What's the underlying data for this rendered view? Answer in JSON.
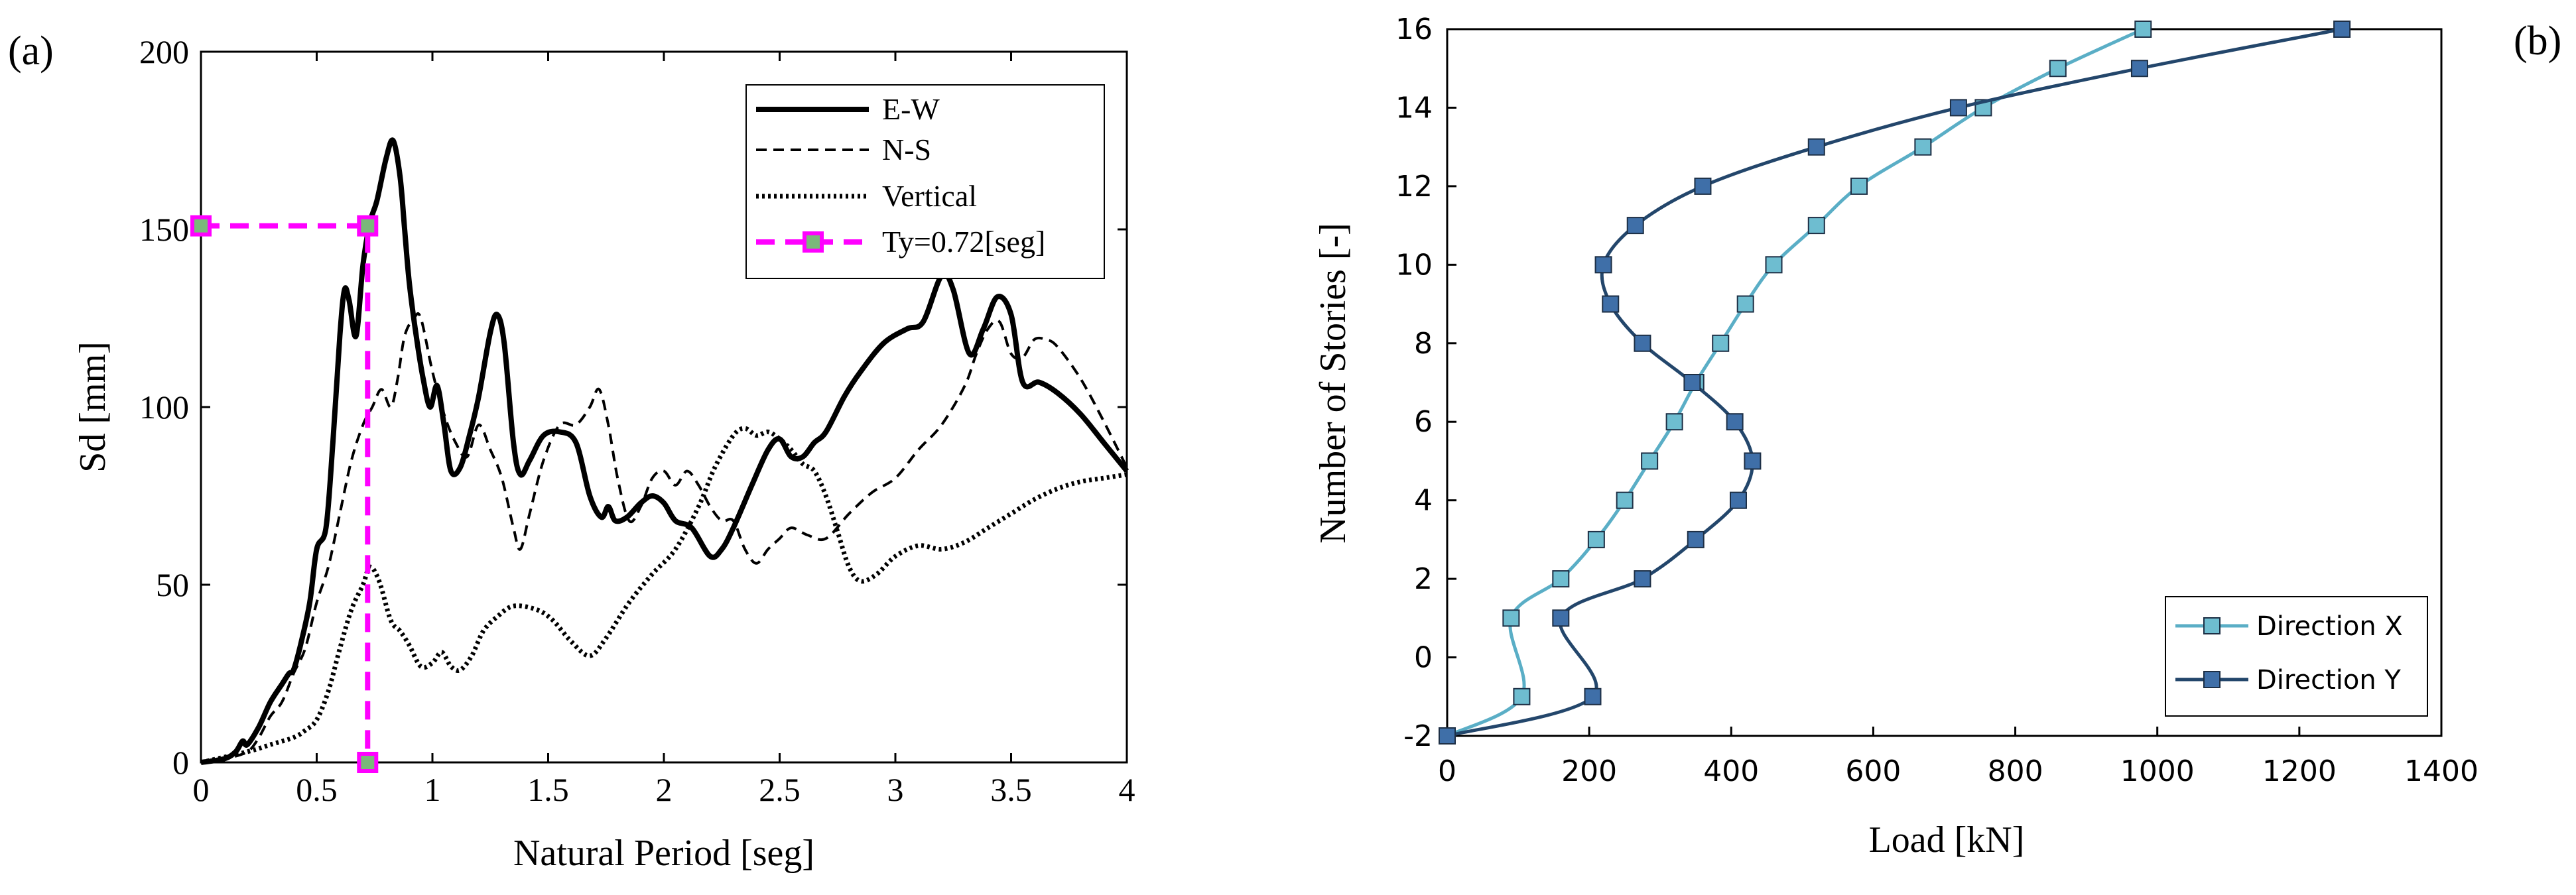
{
  "panel_a_label": "(a)",
  "panel_b_label": "(b)",
  "chart_data": [
    {
      "id": "a",
      "type": "line",
      "title": "",
      "xlabel": "Natural Period [seg]",
      "ylabel": "Sd [mm]",
      "xlim": [
        0,
        4
      ],
      "ylim": [
        0,
        200
      ],
      "xticks": [
        0,
        0.5,
        1,
        1.5,
        2,
        2.5,
        3,
        3.5,
        4
      ],
      "xtick_labels": [
        "0",
        "0.5",
        "1",
        "1.5",
        "2",
        "2.5",
        "3",
        "3.5",
        "4"
      ],
      "yticks": [
        0,
        50,
        100,
        150,
        200
      ],
      "ytick_labels": [
        "0",
        "50",
        "100",
        "150",
        "200"
      ],
      "grid": false,
      "legend_position": "top-right",
      "series": [
        {
          "name": "E-W",
          "color": "#000000",
          "style": "solid",
          "points": [
            [
              0,
              0
            ],
            [
              0.1,
              1
            ],
            [
              0.15,
              3
            ],
            [
              0.18,
              6
            ],
            [
              0.2,
              5
            ],
            [
              0.25,
              10
            ],
            [
              0.3,
              17
            ],
            [
              0.35,
              22
            ],
            [
              0.38,
              25
            ],
            [
              0.4,
              26
            ],
            [
              0.43,
              33
            ],
            [
              0.47,
              45
            ],
            [
              0.5,
              60
            ],
            [
              0.54,
              66
            ],
            [
              0.57,
              90
            ],
            [
              0.6,
              120
            ],
            [
              0.62,
              133
            ],
            [
              0.64,
              130
            ],
            [
              0.67,
              120
            ],
            [
              0.7,
              140
            ],
            [
              0.73,
              152
            ],
            [
              0.76,
              158
            ],
            [
              0.8,
              170
            ],
            [
              0.83,
              175
            ],
            [
              0.86,
              165
            ],
            [
              0.88,
              150
            ],
            [
              0.9,
              135
            ],
            [
              0.93,
              120
            ],
            [
              0.96,
              108
            ],
            [
              0.99,
              100
            ],
            [
              1.02,
              106
            ],
            [
              1.05,
              95
            ],
            [
              1.08,
              82
            ],
            [
              1.12,
              83
            ],
            [
              1.16,
              92
            ],
            [
              1.2,
              103
            ],
            [
              1.25,
              121
            ],
            [
              1.28,
              126
            ],
            [
              1.31,
              118
            ],
            [
              1.35,
              90
            ],
            [
              1.38,
              81
            ],
            [
              1.42,
              85
            ],
            [
              1.48,
              92
            ],
            [
              1.55,
              93
            ],
            [
              1.62,
              90
            ],
            [
              1.68,
              75
            ],
            [
              1.73,
              69
            ],
            [
              1.76,
              72
            ],
            [
              1.79,
              68
            ],
            [
              1.84,
              69
            ],
            [
              1.9,
              73
            ],
            [
              1.95,
              75
            ],
            [
              2.0,
              73
            ],
            [
              2.05,
              68
            ],
            [
              2.12,
              66
            ],
            [
              2.2,
              58
            ],
            [
              2.25,
              60
            ],
            [
              2.3,
              66
            ],
            [
              2.38,
              78
            ],
            [
              2.45,
              88
            ],
            [
              2.5,
              91
            ],
            [
              2.55,
              86
            ],
            [
              2.6,
              86
            ],
            [
              2.65,
              90
            ],
            [
              2.7,
              93
            ],
            [
              2.78,
              103
            ],
            [
              2.85,
              110
            ],
            [
              2.95,
              118
            ],
            [
              3.05,
              122
            ],
            [
              3.12,
              124
            ],
            [
              3.2,
              137
            ],
            [
              3.25,
              133
            ],
            [
              3.32,
              115
            ],
            [
              3.38,
              122
            ],
            [
              3.44,
              131
            ],
            [
              3.5,
              126
            ],
            [
              3.55,
              107
            ],
            [
              3.62,
              107
            ],
            [
              3.7,
              104
            ],
            [
              3.8,
              98
            ],
            [
              3.9,
              90
            ],
            [
              4.0,
              82
            ]
          ]
        },
        {
          "name": "N-S",
          "color": "#000000",
          "style": "dashed",
          "points": [
            [
              0,
              0
            ],
            [
              0.1,
              1
            ],
            [
              0.2,
              3
            ],
            [
              0.25,
              7
            ],
            [
              0.3,
              13
            ],
            [
              0.35,
              17
            ],
            [
              0.4,
              25
            ],
            [
              0.45,
              32
            ],
            [
              0.5,
              45
            ],
            [
              0.55,
              55
            ],
            [
              0.6,
              70
            ],
            [
              0.65,
              85
            ],
            [
              0.7,
              95
            ],
            [
              0.74,
              100
            ],
            [
              0.78,
              105
            ],
            [
              0.82,
              100
            ],
            [
              0.85,
              108
            ],
            [
              0.88,
              120
            ],
            [
              0.92,
              125
            ],
            [
              0.95,
              125
            ],
            [
              1.0,
              110
            ],
            [
              1.05,
              98
            ],
            [
              1.1,
              90
            ],
            [
              1.15,
              86
            ],
            [
              1.2,
              95
            ],
            [
              1.25,
              88
            ],
            [
              1.3,
              80
            ],
            [
              1.35,
              66
            ],
            [
              1.38,
              60
            ],
            [
              1.42,
              70
            ],
            [
              1.48,
              85
            ],
            [
              1.55,
              95
            ],
            [
              1.62,
              95
            ],
            [
              1.68,
              100
            ],
            [
              1.72,
              105
            ],
            [
              1.76,
              95
            ],
            [
              1.8,
              80
            ],
            [
              1.85,
              68
            ],
            [
              1.9,
              72
            ],
            [
              1.95,
              80
            ],
            [
              2.0,
              82
            ],
            [
              2.05,
              78
            ],
            [
              2.1,
              82
            ],
            [
              2.15,
              78
            ],
            [
              2.2,
              72
            ],
            [
              2.25,
              68
            ],
            [
              2.3,
              68
            ],
            [
              2.35,
              60
            ],
            [
              2.4,
              56
            ],
            [
              2.45,
              60
            ],
            [
              2.5,
              63
            ],
            [
              2.55,
              66
            ],
            [
              2.62,
              64
            ],
            [
              2.7,
              63
            ],
            [
              2.8,
              70
            ],
            [
              2.9,
              76
            ],
            [
              3.0,
              80
            ],
            [
              3.1,
              88
            ],
            [
              3.2,
              95
            ],
            [
              3.3,
              106
            ],
            [
              3.35,
              115
            ],
            [
              3.4,
              122
            ],
            [
              3.45,
              124
            ],
            [
              3.5,
              115
            ],
            [
              3.55,
              114
            ],
            [
              3.6,
              119
            ],
            [
              3.65,
              119
            ],
            [
              3.7,
              117
            ],
            [
              3.8,
              108
            ],
            [
              3.9,
              96
            ],
            [
              4.0,
              83
            ]
          ]
        },
        {
          "name": "Vertical",
          "color": "#000000",
          "style": "dotted",
          "points": [
            [
              0,
              0
            ],
            [
              0.2,
              3
            ],
            [
              0.3,
              5
            ],
            [
              0.4,
              7
            ],
            [
              0.45,
              9
            ],
            [
              0.5,
              12
            ],
            [
              0.55,
              20
            ],
            [
              0.6,
              32
            ],
            [
              0.65,
              43
            ],
            [
              0.7,
              50
            ],
            [
              0.73,
              55
            ],
            [
              0.77,
              51
            ],
            [
              0.82,
              40
            ],
            [
              0.86,
              37
            ],
            [
              0.9,
              33
            ],
            [
              0.95,
              27
            ],
            [
              1.0,
              28
            ],
            [
              1.04,
              31
            ],
            [
              1.08,
              27
            ],
            [
              1.12,
              26
            ],
            [
              1.17,
              30
            ],
            [
              1.22,
              37
            ],
            [
              1.28,
              41
            ],
            [
              1.35,
              44
            ],
            [
              1.45,
              43
            ],
            [
              1.52,
              40
            ],
            [
              1.6,
              34
            ],
            [
              1.68,
              30
            ],
            [
              1.75,
              35
            ],
            [
              1.85,
              45
            ],
            [
              1.95,
              53
            ],
            [
              2.05,
              60
            ],
            [
              2.15,
              72
            ],
            [
              2.22,
              83
            ],
            [
              2.3,
              92
            ],
            [
              2.35,
              94
            ],
            [
              2.4,
              92
            ],
            [
              2.45,
              93
            ],
            [
              2.5,
              91
            ],
            [
              2.55,
              88
            ],
            [
              2.6,
              84
            ],
            [
              2.65,
              82
            ],
            [
              2.7,
              75
            ],
            [
              2.75,
              65
            ],
            [
              2.8,
              55
            ],
            [
              2.85,
              51
            ],
            [
              2.92,
              53
            ],
            [
              3.0,
              58
            ],
            [
              3.1,
              61
            ],
            [
              3.2,
              60
            ],
            [
              3.3,
              62
            ],
            [
              3.4,
              66
            ],
            [
              3.5,
              70
            ],
            [
              3.6,
              74
            ],
            [
              3.7,
              77
            ],
            [
              3.8,
              79
            ],
            [
              3.9,
              80
            ],
            [
              4.0,
              81
            ]
          ]
        }
      ],
      "marker": {
        "name": "Ty=0.72[seg]",
        "color": "#ff00ff",
        "period": 0.72,
        "sd": 151
      }
    },
    {
      "id": "b",
      "type": "line",
      "title": "",
      "xlabel": "Load [kN]",
      "ylabel": "Number of Stories [-]",
      "xlim": [
        0,
        1400
      ],
      "ylim": [
        -2,
        16
      ],
      "xticks": [
        0,
        200,
        400,
        600,
        800,
        1000,
        1200,
        1400
      ],
      "xtick_labels": [
        "0",
        "200",
        "400",
        "600",
        "800",
        "1000",
        "1200",
        "1400"
      ],
      "yticks": [
        -2,
        0,
        2,
        4,
        6,
        8,
        10,
        12,
        14,
        16
      ],
      "ytick_labels": [
        "-2",
        "0",
        "2",
        "4",
        "6",
        "8",
        "10",
        "12",
        "14",
        "16"
      ],
      "grid": false,
      "legend_position": "bottom-right",
      "series": [
        {
          "name": "Direction X",
          "color": "#5aaec6",
          "marker_fill": "#6ebdd0",
          "x": [
            0,
            105,
            90,
            160,
            210,
            250,
            285,
            320,
            350,
            385,
            420,
            460,
            520,
            580,
            670,
            755,
            860,
            980
          ],
          "y": [
            -2,
            -1,
            1,
            2,
            3,
            4,
            5,
            6,
            7,
            8,
            9,
            10,
            11,
            12,
            13,
            14,
            15,
            16
          ]
        },
        {
          "name": "Direction Y",
          "color": "#23466b",
          "marker_fill": "#3f6fa8",
          "x": [
            0,
            205,
            160,
            275,
            350,
            410,
            430,
            405,
            345,
            275,
            230,
            220,
            265,
            360,
            520,
            720,
            975,
            1260
          ],
          "y": [
            -2,
            -1,
            1,
            2,
            3,
            4,
            5,
            6,
            7,
            8,
            9,
            10,
            11,
            12,
            13,
            14,
            15,
            16
          ]
        }
      ]
    }
  ]
}
